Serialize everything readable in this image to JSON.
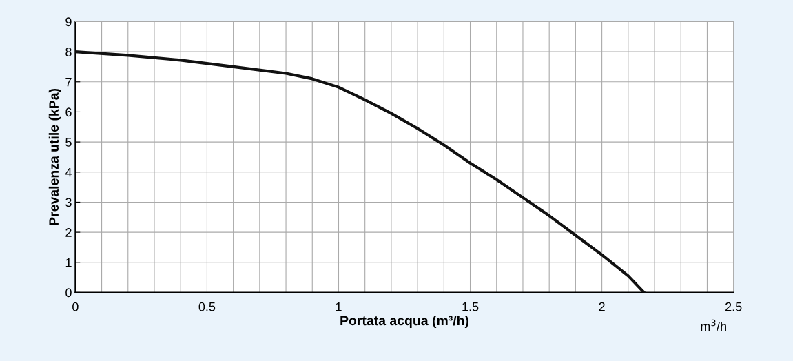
{
  "chart_data": {
    "type": "line",
    "xlabel": "Portata acqua (m³/h)",
    "ylabel": "Prevalenza utile (kPa)",
    "annotations": [
      "m$^{3}$/h"
    ],
    "x": [
      0,
      0.2,
      0.4,
      0.6,
      0.8,
      0.9,
      1.0,
      1.1,
      1.2,
      1.3,
      1.4,
      1.5,
      1.6,
      1.7,
      1.8,
      1.9,
      2.0,
      2.1,
      2.16
    ],
    "series": [
      {
        "color": "#111111",
        "values": [
          8.0,
          7.88,
          7.72,
          7.5,
          7.28,
          7.1,
          6.82,
          6.4,
          5.95,
          5.45,
          4.9,
          4.3,
          3.75,
          3.15,
          2.55,
          1.9,
          1.25,
          0.55,
          0
        ]
      }
    ],
    "xlim": [
      0,
      2.5
    ],
    "ylim": [
      0,
      9
    ],
    "xticks": [
      0,
      {
        "value": 0.1,
        "label": null
      },
      {
        "value": 0.2,
        "label": null
      },
      {
        "value": 0.3,
        "label": null
      },
      {
        "value": 0.4,
        "label": null
      },
      0.5,
      {
        "value": 0.6,
        "label": null
      },
      {
        "value": 0.7,
        "label": null
      },
      {
        "value": 0.8,
        "label": null
      },
      {
        "value": 0.9,
        "label": null
      },
      1,
      {
        "value": 1.1,
        "label": null
      },
      {
        "value": 1.2,
        "label": null
      },
      {
        "value": 1.3,
        "label": null
      },
      {
        "value": 1.4,
        "label": null
      },
      1.5,
      {
        "value": 1.6,
        "label": null
      },
      {
        "value": 1.7,
        "label": null
      },
      {
        "value": 1.8,
        "label": null
      },
      {
        "value": 1.9,
        "label": null
      },
      2,
      {
        "value": 2.1,
        "label": null
      },
      {
        "value": 2.2,
        "label": null
      },
      {
        "value": 2.3,
        "label": null
      },
      {
        "value": 2.4,
        "label": null
      },
      2.5
    ],
    "yticks": [
      0,
      1,
      2,
      3,
      4,
      5,
      6,
      7,
      8,
      9
    ],
    "grid": true,
    "marker": "none",
    "line_style": "solid",
    "legend": false
  }
}
